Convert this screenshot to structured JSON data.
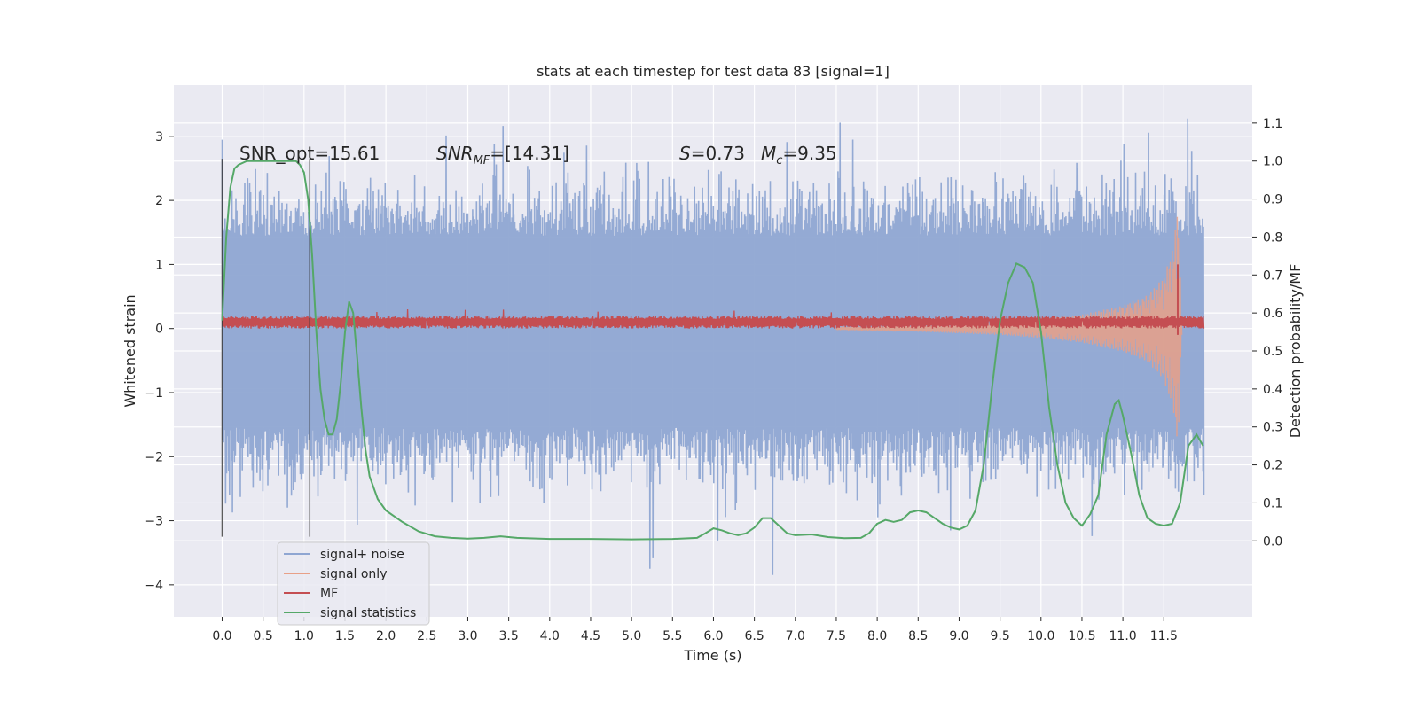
{
  "chart_data": {
    "type": "line",
    "title": "stats at each timestep for test data 83 [signal=1]",
    "xlabel": "Time (s)",
    "ylabel": "Whitened strain",
    "ylabel_right": "Detection probability/MF",
    "xlim": [
      -0.59,
      12.58
    ],
    "ylim": [
      -4.5,
      3.8
    ],
    "ylim_right": [
      -0.2,
      1.2
    ],
    "x_ticks": [
      "0.0",
      "0.5",
      "1.0",
      "1.5",
      "2.0",
      "2.5",
      "3.0",
      "3.5",
      "4.0",
      "4.5",
      "5.0",
      "5.5",
      "6.0",
      "6.5",
      "7.0",
      "7.5",
      "8.0",
      "8.5",
      "9.0",
      "9.5",
      "10.0",
      "10.5",
      "11.0",
      "11.5"
    ],
    "x_tick_values": [
      0,
      0.5,
      1,
      1.5,
      2,
      2.5,
      3,
      3.5,
      4,
      4.5,
      5,
      5.5,
      6,
      6.5,
      7,
      7.5,
      8,
      8.5,
      9,
      9.5,
      10,
      10.5,
      11,
      11.5
    ],
    "y_ticks": [
      "3",
      "2",
      "1",
      "0",
      "−1",
      "−2",
      "−3",
      "−4"
    ],
    "y_tick_values": [
      3,
      2,
      1,
      0,
      -1,
      -2,
      -3,
      -4
    ],
    "y_right_ticks": [
      "1.1",
      "1.0",
      "0.9",
      "0.8",
      "0.7",
      "0.6",
      "0.5",
      "0.4",
      "0.3",
      "0.2",
      "0.1",
      "0.0"
    ],
    "y_right_tick_values": [
      1.1,
      1.0,
      0.9,
      0.8,
      0.7,
      0.6,
      0.5,
      0.4,
      0.3,
      0.2,
      0.1,
      0.0
    ],
    "grid": true,
    "legend_position": "lower-left",
    "annotations": {
      "snr_opt": "SNR_opt=15.61",
      "snr_mf_italic": "SNR",
      "snr_mf_sub": "MF",
      "snr_mf_rest": "=[14.31]",
      "s_italic": "S",
      "s_rest": "=0.73",
      "mc_italic": "M",
      "mc_sub": "c",
      "mc_rest": "=9.35"
    },
    "window_markers": {
      "x": [
        0.0,
        1.07
      ],
      "y_range": [
        -3.25,
        2.65
      ]
    },
    "noise_envelope": {
      "x_range": [
        0.0,
        11.99
      ],
      "typical_upper": 1.45,
      "typical_lower": -1.55,
      "max": 3.45,
      "min": -4.1
    },
    "signal_chirp": {
      "x": [
        7.5,
        8.5,
        9.5,
        10.0,
        10.5,
        11.0,
        11.3,
        11.5,
        11.62,
        11.67,
        11.72
      ],
      "amplitude": [
        0.02,
        0.05,
        0.1,
        0.15,
        0.22,
        0.36,
        0.52,
        0.8,
        1.3,
        1.95,
        0.1
      ]
    },
    "mf_band": {
      "x_range": [
        0.0,
        11.99
      ],
      "center": 0.1,
      "half_width": 0.1,
      "spike_x": 11.67,
      "spike_top": 1.0,
      "spike_bottom": -0.1
    },
    "series": [
      {
        "name": "signal+ noise",
        "color": "#8fa6d2"
      },
      {
        "name": "signal only",
        "color": "#e8a087"
      },
      {
        "name": "MF",
        "color": "#c44e52"
      },
      {
        "name": "signal statistics",
        "color": "#55a868",
        "axis": "right",
        "x": [
          0.0,
          0.05,
          0.1,
          0.15,
          0.2,
          0.3,
          0.4,
          0.5,
          0.6,
          0.7,
          0.8,
          0.9,
          0.95,
          1.0,
          1.05,
          1.1,
          1.15,
          1.2,
          1.25,
          1.3,
          1.35,
          1.4,
          1.45,
          1.5,
          1.55,
          1.6,
          1.65,
          1.7,
          1.75,
          1.8,
          1.9,
          2.0,
          2.2,
          2.4,
          2.6,
          2.8,
          3.0,
          3.2,
          3.4,
          3.6,
          4.0,
          4.5,
          5.0,
          5.5,
          5.8,
          5.9,
          6.0,
          6.1,
          6.2,
          6.3,
          6.4,
          6.5,
          6.6,
          6.7,
          6.8,
          6.9,
          7.0,
          7.2,
          7.4,
          7.6,
          7.8,
          7.9,
          8.0,
          8.1,
          8.2,
          8.3,
          8.4,
          8.5,
          8.6,
          8.7,
          8.8,
          8.9,
          9.0,
          9.1,
          9.2,
          9.3,
          9.4,
          9.5,
          9.6,
          9.7,
          9.8,
          9.9,
          10.0,
          10.1,
          10.2,
          10.3,
          10.4,
          10.5,
          10.6,
          10.7,
          10.8,
          10.9,
          10.95,
          11.0,
          11.1,
          11.2,
          11.3,
          11.4,
          11.5,
          11.6,
          11.7,
          11.8,
          11.9,
          11.98
        ],
        "y": [
          0.58,
          0.8,
          0.93,
          0.98,
          0.99,
          1.0,
          1.0,
          1.0,
          1.0,
          1.0,
          1.0,
          1.0,
          0.99,
          0.97,
          0.9,
          0.75,
          0.55,
          0.4,
          0.32,
          0.28,
          0.28,
          0.32,
          0.42,
          0.55,
          0.63,
          0.6,
          0.48,
          0.35,
          0.24,
          0.17,
          0.11,
          0.08,
          0.05,
          0.025,
          0.012,
          0.008,
          0.006,
          0.008,
          0.012,
          0.008,
          0.005,
          0.005,
          0.004,
          0.005,
          0.008,
          0.02,
          0.033,
          0.028,
          0.02,
          0.015,
          0.02,
          0.035,
          0.06,
          0.06,
          0.04,
          0.02,
          0.015,
          0.017,
          0.01,
          0.007,
          0.008,
          0.02,
          0.045,
          0.055,
          0.05,
          0.055,
          0.075,
          0.08,
          0.075,
          0.06,
          0.045,
          0.035,
          0.03,
          0.04,
          0.08,
          0.2,
          0.4,
          0.58,
          0.68,
          0.73,
          0.72,
          0.68,
          0.55,
          0.35,
          0.2,
          0.1,
          0.06,
          0.04,
          0.07,
          0.12,
          0.28,
          0.36,
          0.37,
          0.33,
          0.23,
          0.12,
          0.06,
          0.045,
          0.04,
          0.045,
          0.1,
          0.25,
          0.28,
          0.25
        ]
      }
    ]
  }
}
